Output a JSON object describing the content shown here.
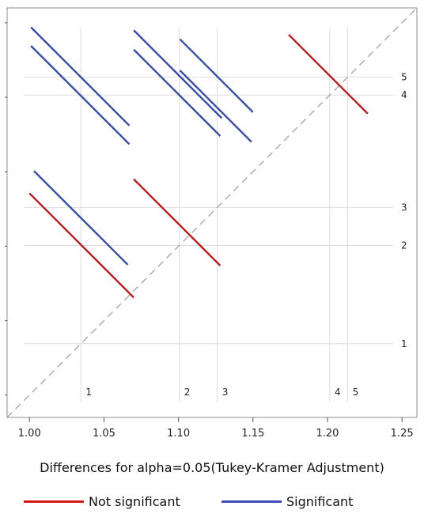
{
  "chart_data": {
    "type": "line",
    "title": "",
    "xlabel": "",
    "ylabel": "",
    "caption": "Differences for alpha=0.05(Tukey-Kramer Adjustment)",
    "xlim": [
      0.985,
      1.26
    ],
    "ylim": [
      0.985,
      1.26
    ],
    "x_ticks": [
      1.0,
      1.05,
      1.1,
      1.15,
      1.2,
      1.25
    ],
    "x_tick_labels": [
      "1.00",
      "1.05",
      "1.10",
      "1.15",
      "1.20",
      "1.25"
    ],
    "levels": [
      {
        "label": "1",
        "value": 1.0345
      },
      {
        "label": "2",
        "value": 1.1005
      },
      {
        "label": "3",
        "value": 1.126
      },
      {
        "label": "4",
        "value": 1.2015
      },
      {
        "label": "5",
        "value": 1.2135
      }
    ],
    "diagonal": true,
    "series": [
      {
        "name": "Not significant",
        "color": "#b22222"
      },
      {
        "name": "Significant",
        "color": "#3a4fa0"
      }
    ],
    "segments": [
      {
        "pair": "1-2",
        "significant": false,
        "x": [
          1.0,
          1.07
        ],
        "y": [
          1.1355,
          1.0655
        ]
      },
      {
        "pair": "1-3",
        "significant": true,
        "x": [
          1.003,
          1.066
        ],
        "y": [
          1.1505,
          1.0875
        ]
      },
      {
        "pair": "1-4",
        "significant": true,
        "x": [
          1.001,
          1.067
        ],
        "y": [
          1.2345,
          1.1685
        ]
      },
      {
        "pair": "1-5",
        "significant": true,
        "x": [
          1.001,
          1.067
        ],
        "y": [
          1.247,
          1.181
        ]
      },
      {
        "pair": "2-3",
        "significant": false,
        "x": [
          1.07,
          1.128
        ],
        "y": [
          1.145,
          1.087
        ]
      },
      {
        "pair": "2-4",
        "significant": true,
        "x": [
          1.07,
          1.128
        ],
        "y": [
          1.232,
          1.174
        ]
      },
      {
        "pair": "2-5",
        "significant": true,
        "x": [
          1.07,
          1.129
        ],
        "y": [
          1.245,
          1.186
        ]
      },
      {
        "pair": "3-4",
        "significant": true,
        "x": [
          1.101,
          1.149
        ],
        "y": [
          1.218,
          1.17
        ]
      },
      {
        "pair": "3-5",
        "significant": true,
        "x": [
          1.101,
          1.15
        ],
        "y": [
          1.239,
          1.19
        ]
      },
      {
        "pair": "4-5",
        "significant": false,
        "x": [
          1.174,
          1.227
        ],
        "y": [
          1.242,
          1.189
        ]
      }
    ]
  },
  "legend": {
    "not_significant": {
      "label": "Not significant",
      "color": "#d01818"
    },
    "significant": {
      "label": "Significant",
      "color": "#3a50b8"
    }
  }
}
